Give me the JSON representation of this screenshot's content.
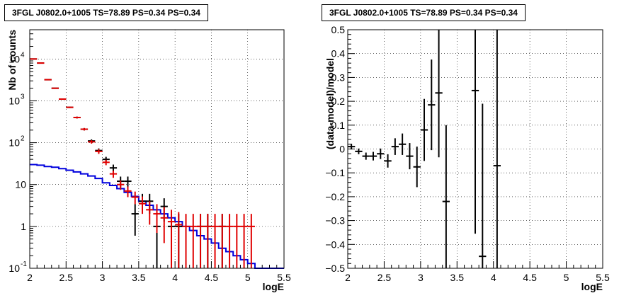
{
  "chart_data": [
    {
      "type": "histogram",
      "title": "3FGL J0802.0+1005 TS=78.89 PS=0.34 PS=0.34",
      "xlabel": "logE",
      "ylabel": "Nb of counts",
      "xlim": [
        2,
        5.5
      ],
      "ylim": [
        0.1,
        50000
      ],
      "yscale": "log",
      "grid": true,
      "x_ticks": [
        "2",
        "2.5",
        "3",
        "3.5",
        "4",
        "4.5",
        "5",
        "5.5"
      ],
      "y_ticks": [
        "10^-1",
        "1",
        "10",
        "10^2",
        "10^3",
        "10^4"
      ],
      "series": [
        {
          "color": "#000000",
          "style": "errorbar",
          "x": [
            2.05,
            2.15,
            2.25,
            2.35,
            2.45,
            2.55,
            2.65,
            2.75,
            2.85,
            2.95,
            3.05,
            3.15,
            3.25,
            3.35,
            3.45,
            3.55,
            3.65,
            3.75,
            3.85,
            3.95,
            4.05,
            4.35,
            4.45,
            4.65
          ],
          "y": [
            10000,
            8000,
            3200,
            2000,
            1100,
            700,
            400,
            210,
            110,
            65,
            40,
            25,
            12,
            12,
            2,
            4,
            4,
            1,
            3,
            1,
            1,
            1,
            1,
            1
          ],
          "err_low": [
            100,
            90,
            56,
            45,
            33,
            26,
            20,
            14,
            10,
            8,
            6,
            5,
            3.5,
            3.5,
            1.4,
            2,
            2,
            0.95,
            1.7,
            0.95,
            0.95,
            0.95,
            0.95,
            0.95
          ],
          "err_high": [
            100,
            90,
            56,
            45,
            33,
            26,
            20,
            14,
            10,
            8,
            6,
            5,
            3.5,
            3.5,
            1.4,
            2,
            2,
            1,
            1.7,
            1,
            1,
            1,
            1,
            1
          ]
        },
        {
          "color": "#e00000",
          "style": "errorbar",
          "x": [
            2.05,
            2.15,
            2.25,
            2.35,
            2.45,
            2.55,
            2.65,
            2.75,
            2.85,
            2.95,
            3.05,
            3.15,
            3.25,
            3.35,
            3.45,
            3.55,
            3.65,
            3.75,
            3.85,
            3.95,
            4.05,
            4.15,
            4.25,
            4.35,
            4.45,
            4.55,
            4.65,
            4.75,
            4.85,
            4.95,
            5.05
          ],
          "y": [
            10000,
            8000,
            3200,
            2000,
            1100,
            700,
            400,
            210,
            105,
            62,
            34,
            18,
            10,
            7,
            5,
            3.5,
            2.5,
            2,
            1.6,
            1.3,
            1.1,
            1,
            1,
            1,
            1,
            1,
            1,
            1,
            1,
            1,
            1
          ],
          "err_low": [
            100,
            90,
            56,
            45,
            33,
            26,
            20,
            14,
            10,
            8,
            5,
            3.5,
            2.5,
            2,
            1.6,
            1.5,
            1.4,
            1.3,
            1.2,
            1.2,
            1.05,
            0.98,
            0.98,
            0.98,
            0.98,
            0.98,
            0.98,
            0.98,
            0.98,
            0.98,
            0.98
          ],
          "err_high": [
            100,
            90,
            56,
            45,
            33,
            26,
            20,
            14,
            10,
            8,
            5,
            3.5,
            2.5,
            2,
            1.8,
            1.7,
            1.5,
            1.4,
            1.3,
            1.2,
            1.1,
            1,
            1,
            1,
            1,
            1,
            1,
            1,
            1,
            1,
            1
          ]
        },
        {
          "color": "#0000dd",
          "style": "step",
          "x_edges": [
            2.0,
            2.1,
            2.2,
            2.3,
            2.4,
            2.5,
            2.6,
            2.7,
            2.8,
            2.9,
            3.0,
            3.1,
            3.2,
            3.3,
            3.4,
            3.5,
            3.6,
            3.7,
            3.8,
            3.9,
            4.0,
            4.1,
            4.2,
            4.3,
            4.4,
            4.5,
            4.6,
            4.7,
            4.8,
            4.9,
            5.0,
            5.1,
            5.2,
            5.3,
            5.4,
            5.5
          ],
          "y": [
            30,
            29,
            27,
            26,
            24,
            22,
            20,
            18,
            16,
            14,
            11,
            9.5,
            8,
            6.5,
            5.2,
            4,
            3.2,
            2.5,
            2,
            1.6,
            1.3,
            1,
            0.8,
            0.6,
            0.5,
            0.4,
            0.3,
            0.25,
            0.2,
            0.16,
            0.13,
            0.1,
            0.1,
            0.1,
            0.1
          ]
        }
      ]
    },
    {
      "type": "errorbar",
      "title": "3FGL J0802.0+1005 TS=78.89 PS=0.34 PS=0.34",
      "xlabel": "logE",
      "ylabel": "(data-model)/model",
      "xlim": [
        2,
        5.5
      ],
      "ylim": [
        -0.5,
        0.5
      ],
      "grid": true,
      "x_ticks": [
        "2",
        "2.5",
        "3",
        "3.5",
        "4",
        "4.5",
        "5",
        "5.5"
      ],
      "y_ticks": [
        "-0.5",
        "-0.4",
        "-0.3",
        "-0.2",
        "-0.1",
        "0",
        "0.1",
        "0.2",
        "0.3",
        "0.4",
        "0.5"
      ],
      "series": [
        {
          "color": "#000000",
          "x": [
            2.05,
            2.15,
            2.25,
            2.35,
            2.45,
            2.55,
            2.65,
            2.75,
            2.85,
            2.95,
            3.05,
            3.15,
            3.25,
            3.35,
            3.75,
            3.85,
            4.05
          ],
          "y": [
            0.01,
            -0.01,
            -0.03,
            -0.03,
            -0.02,
            -0.05,
            0.01,
            0.02,
            -0.03,
            -0.075,
            0.08,
            0.185,
            0.235,
            -0.22,
            0.245,
            -0.45,
            -0.07
          ],
          "err": [
            0.012,
            0.012,
            0.015,
            0.018,
            0.022,
            0.028,
            0.035,
            0.045,
            0.055,
            0.085,
            0.13,
            0.19,
            0.27,
            0.32,
            0.6,
            0.64,
            0.6
          ]
        }
      ]
    }
  ]
}
